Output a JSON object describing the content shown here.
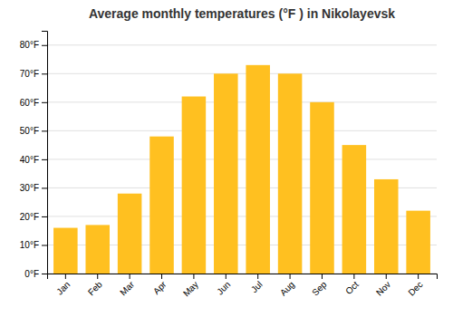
{
  "chart_data": {
    "type": "bar",
    "title": "Average monthly temperatures (°F ) in Nikolayevsk",
    "categories": [
      "Jan",
      "Feb",
      "Mar",
      "Apr",
      "May",
      "Jun",
      "Jul",
      "Aug",
      "Sep",
      "Oct",
      "Nov",
      "Dec"
    ],
    "values": [
      16,
      17,
      28,
      48,
      62,
      70,
      73,
      70,
      60,
      45,
      33,
      22
    ],
    "color": "#FFC020",
    "ylim": [
      0,
      85
    ],
    "yticks": [
      {
        "value": 0,
        "label": "0°F"
      },
      {
        "value": 10,
        "label": "10°F"
      },
      {
        "value": 20,
        "label": "20°F"
      },
      {
        "value": 30,
        "label": "30°F"
      },
      {
        "value": 40,
        "label": "40°F"
      },
      {
        "value": 50,
        "label": "50°F"
      },
      {
        "value": 60,
        "label": "60°F"
      },
      {
        "value": 70,
        "label": "70°F"
      },
      {
        "value": 80,
        "label": "80°F"
      }
    ],
    "grid": true
  }
}
